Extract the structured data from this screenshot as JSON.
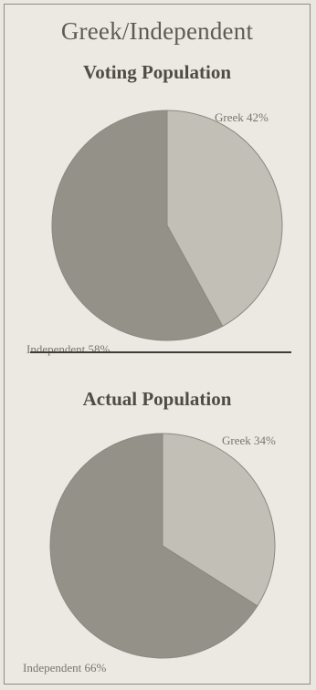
{
  "title": "Greek/Independent",
  "colors": {
    "greek": "#c2c0b6",
    "independent": "#939188",
    "outline": "#8a8880"
  },
  "chart_data": [
    {
      "type": "pie",
      "title": "Voting Population",
      "slices": [
        {
          "name": "Greek",
          "value": 42,
          "label": "Greek 42%"
        },
        {
          "name": "Independent",
          "value": 58,
          "label": "Independent 58%"
        }
      ]
    },
    {
      "type": "pie",
      "title": "Actual Population",
      "slices": [
        {
          "name": "Greek",
          "value": 34,
          "label": "Greek 34%"
        },
        {
          "name": "Independent",
          "value": 66,
          "label": "Independent 66%"
        }
      ]
    }
  ]
}
